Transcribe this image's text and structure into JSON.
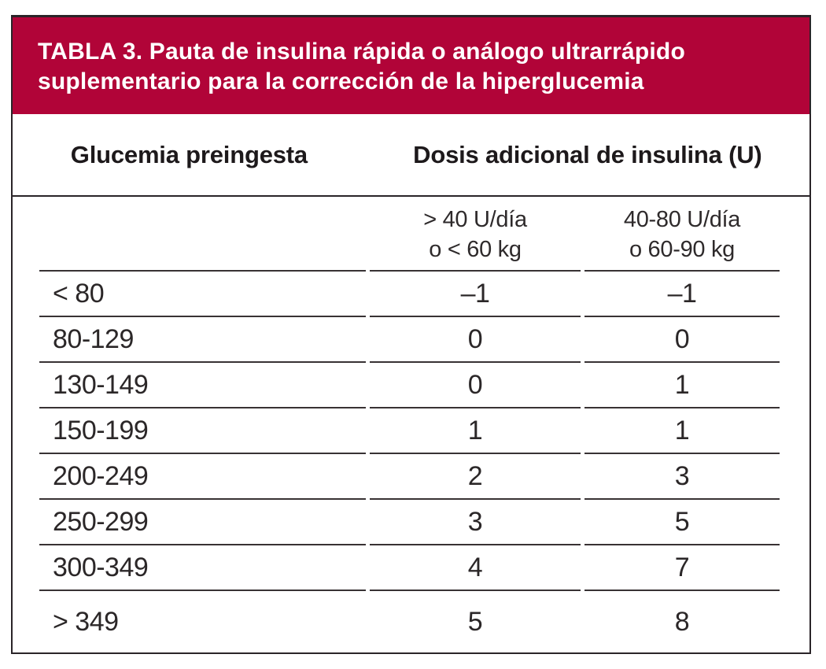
{
  "page": {
    "background_color": "#ffffff"
  },
  "colors": {
    "banner_accent": "#b10438",
    "frame_border": "#2a2428",
    "row_line": "#383234",
    "header_text": "#1d191b",
    "body_text": "#2b2728",
    "banner_text": "#ffffff"
  },
  "table": {
    "title_line1": "TABLA 3. Pauta de insulina rápida o análogo ultrarrápido",
    "title_line2": "suplementario para la corrección de la hiperglucemia",
    "column_headers": {
      "glucemia": "Glucemia preingesta",
      "dosis": "Dosis adicional de insulina (U)"
    },
    "dose_groups": [
      {
        "line1": "> 40 U/día",
        "line2": "o < 60 kg"
      },
      {
        "line1": "40-80 U/día",
        "line2": "o 60-90 kg"
      }
    ],
    "rows": [
      {
        "glucemia": "< 80",
        "dose1": "–1",
        "dose2": "–1"
      },
      {
        "glucemia": "80-129",
        "dose1": "0",
        "dose2": "0"
      },
      {
        "glucemia": "130-149",
        "dose1": "0",
        "dose2": "1"
      },
      {
        "glucemia": "150-199",
        "dose1": "1",
        "dose2": "1"
      },
      {
        "glucemia": "200-249",
        "dose1": "2",
        "dose2": "3"
      },
      {
        "glucemia": "250-299",
        "dose1": "3",
        "dose2": "5"
      },
      {
        "glucemia": "300-349",
        "dose1": "4",
        "dose2": "7"
      },
      {
        "glucemia": "> 349",
        "dose1": "5",
        "dose2": "8"
      }
    ]
  }
}
